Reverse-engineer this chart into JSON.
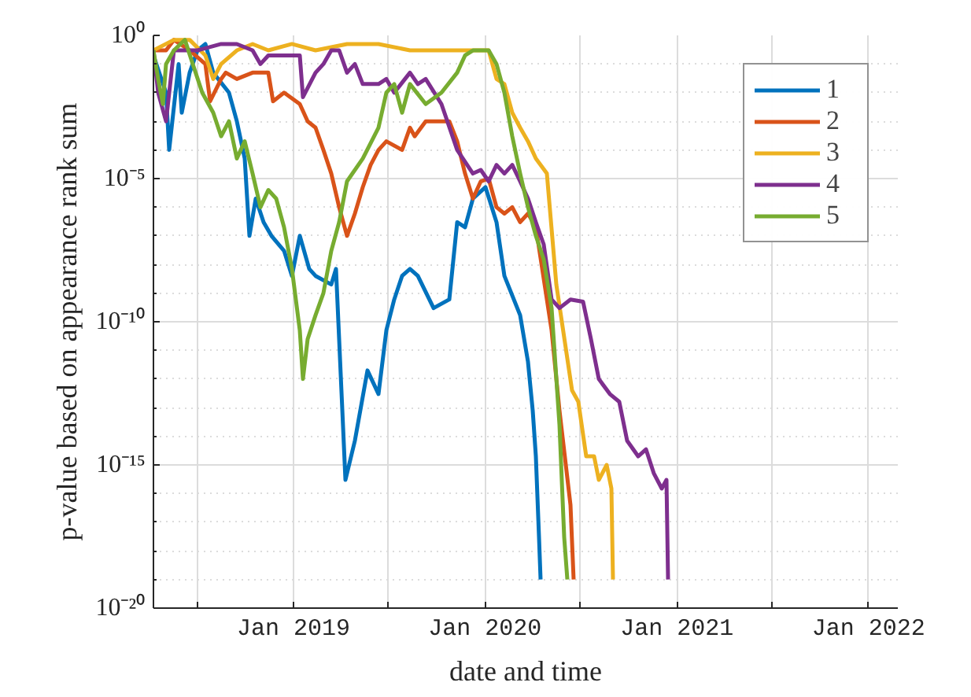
{
  "chart_data": {
    "type": "line",
    "xlabel": "date and time",
    "ylabel": "p-value based on appearance rank sum",
    "log": "y",
    "grid": true,
    "legend": "top right",
    "line_style": "solid",
    "marker": "none",
    "xlim": [
      "2018-04-09",
      "2022-02-26"
    ],
    "ylim": [
      1e-20,
      1
    ],
    "xticks": [
      {
        "value": "2018-07-01",
        "label": null
      },
      {
        "value": "2019-01-01",
        "label": "Jan 2019"
      },
      {
        "value": "2019-07-01",
        "label": null
      },
      {
        "value": "2020-01-01",
        "label": "Jan 2020"
      },
      {
        "value": "2020-07-01",
        "label": null
      },
      {
        "value": "2021-01-01",
        "label": "Jan 2021"
      },
      {
        "value": "2021-07-01",
        "label": null
      },
      {
        "value": "2022-01-01",
        "label": "Jan 2022"
      }
    ],
    "yticks": [
      {
        "value": 1e-20,
        "label": "10⁻²⁰"
      },
      {
        "value": 1e-19,
        "label": null
      },
      {
        "value": 1e-18,
        "label": null
      },
      {
        "value": 1e-17,
        "label": null
      },
      {
        "value": 1e-16,
        "label": null
      },
      {
        "value": 1e-15,
        "label": "10⁻¹⁵"
      },
      {
        "value": 1e-14,
        "label": null
      },
      {
        "value": 1e-13,
        "label": null
      },
      {
        "value": 1e-12,
        "label": null
      },
      {
        "value": 1e-11,
        "label": null
      },
      {
        "value": 1e-10,
        "label": "10⁻¹⁰"
      },
      {
        "value": 1e-09,
        "label": null
      },
      {
        "value": 1e-08,
        "label": null
      },
      {
        "value": 1e-07,
        "label": null
      },
      {
        "value": 1e-06,
        "label": null
      },
      {
        "value": 1e-05,
        "label": "10⁻⁵"
      },
      {
        "value": 0.0001,
        "label": null
      },
      {
        "value": 0.001,
        "label": null
      },
      {
        "value": 0.01,
        "label": null
      },
      {
        "value": 0.1,
        "label": null
      },
      {
        "value": 1,
        "label": "10⁰"
      }
    ],
    "series": [
      {
        "name": "1",
        "color": "#0072bd",
        "x": [
          "2018-04-09",
          "2018-05-03",
          "2018-05-09",
          "2018-05-27",
          "2018-06-02",
          "2018-06-17",
          "2018-07-02",
          "2018-07-17",
          "2018-08-01",
          "2018-08-31",
          "2018-09-15",
          "2018-09-30",
          "2018-10-09",
          "2018-10-21",
          "2018-11-05",
          "2018-11-20",
          "2018-12-14",
          "2018-12-29",
          "2019-01-13",
          "2019-01-31",
          "2019-02-12",
          "2019-03-14",
          "2019-03-23",
          "2019-04-10",
          "2019-04-28",
          "2019-05-22",
          "2019-06-12",
          "2019-06-27",
          "2019-07-12",
          "2019-07-27",
          "2019-08-11",
          "2019-08-26",
          "2019-09-25",
          "2019-10-25",
          "2019-11-09",
          "2019-11-24",
          "2019-12-09",
          "2020-01-02",
          "2020-01-23",
          "2020-02-07",
          "2020-03-08",
          "2020-03-23",
          "2020-04-01",
          "2020-04-07",
          "2020-04-13",
          "2020-04-16"
        ],
        "values": [
          0.2,
          0.01,
          0.0001,
          0.1,
          0.002,
          0.05,
          0.3,
          0.5,
          0.05,
          0.01,
          0.001,
          5e-05,
          1e-07,
          2e-06,
          3e-07,
          1e-07,
          3e-08,
          4e-09,
          1e-07,
          7e-09,
          4e-09,
          2e-09,
          7e-09,
          3e-16,
          7e-15,
          2e-12,
          3e-13,
          5e-11,
          6e-10,
          4e-09,
          7e-09,
          4e-09,
          3e-10,
          6e-10,
          3e-07,
          2e-07,
          2e-06,
          5e-06,
          3e-07,
          4e-09,
          1.7e-10,
          4e-12,
          8e-14,
          2e-15,
          3e-18,
          1e-19
        ]
      },
      {
        "name": "2",
        "color": "#d95319",
        "x": [
          "2018-04-09",
          "2018-05-03",
          "2018-05-18",
          "2018-06-17",
          "2018-07-17",
          "2018-07-26",
          "2018-08-16",
          "2018-08-25",
          "2018-09-15",
          "2018-10-15",
          "2018-11-14",
          "2018-11-23",
          "2018-12-14",
          "2019-01-13",
          "2019-01-28",
          "2019-02-12",
          "2019-02-27",
          "2019-03-14",
          "2019-03-29",
          "2019-04-13",
          "2019-04-28",
          "2019-05-13",
          "2019-05-28",
          "2019-06-12",
          "2019-06-27",
          "2019-07-27",
          "2019-08-11",
          "2019-08-20",
          "2019-09-10",
          "2019-10-10",
          "2019-10-25",
          "2019-11-09",
          "2019-11-24",
          "2019-12-09",
          "2019-12-24",
          "2020-01-08",
          "2020-01-23",
          "2020-02-07",
          "2020-02-22",
          "2020-03-08",
          "2020-03-23",
          "2020-04-07",
          "2020-05-07",
          "2020-05-22",
          "2020-06-12",
          "2020-06-18"
        ],
        "values": [
          0.3,
          0.3,
          0.7,
          0.3,
          0.1,
          0.005,
          0.03,
          0.05,
          0.03,
          0.05,
          0.05,
          0.005,
          0.01,
          0.004,
          0.001,
          0.0006,
          0.0001,
          1.5e-05,
          1e-06,
          1e-07,
          6e-07,
          5e-06,
          3e-05,
          0.0001,
          0.0002,
          0.0001,
          0.0006,
          0.0003,
          0.001,
          0.001,
          0.001,
          0.0002,
          1.5e-05,
          2e-06,
          8e-06,
          1e-05,
          1e-06,
          6e-07,
          1e-06,
          3e-07,
          6e-07,
          2e-07,
          5e-11,
          8e-14,
          4e-17,
          1e-19
        ]
      },
      {
        "name": "3",
        "color": "#edb120",
        "x": [
          "2018-04-09",
          "2018-05-18",
          "2018-06-17",
          "2018-07-17",
          "2018-08-01",
          "2018-08-16",
          "2018-09-15",
          "2018-10-15",
          "2018-11-14",
          "2018-12-29",
          "2019-02-12",
          "2019-04-13",
          "2019-06-12",
          "2019-08-11",
          "2019-10-10",
          "2019-12-09",
          "2020-01-08",
          "2020-01-23",
          "2020-02-07",
          "2020-02-22",
          "2020-03-08",
          "2020-03-23",
          "2020-04-07",
          "2020-04-28",
          "2020-05-16",
          "2020-06-15",
          "2020-06-27",
          "2020-07-12",
          "2020-07-27",
          "2020-08-05",
          "2020-08-20",
          "2020-08-29",
          "2020-09-01"
        ],
        "values": [
          0.3,
          0.7,
          0.7,
          0.2,
          0.03,
          0.1,
          0.3,
          0.5,
          0.3,
          0.5,
          0.3,
          0.5,
          0.5,
          0.3,
          0.3,
          0.3,
          0.3,
          0.03,
          0.02,
          0.002,
          0.0006,
          0.0002,
          5e-05,
          1.5e-05,
          2e-09,
          4e-13,
          1.6e-13,
          2e-15,
          2e-15,
          3e-16,
          1e-15,
          1.5e-16,
          1e-19
        ]
      },
      {
        "name": "4",
        "color": "#7e2f8e",
        "x": [
          "2018-04-09",
          "2018-04-18",
          "2018-05-03",
          "2018-05-18",
          "2018-07-02",
          "2018-08-16",
          "2018-09-15",
          "2018-10-15",
          "2018-10-30",
          "2018-11-14",
          "2019-01-13",
          "2019-01-19",
          "2019-02-12",
          "2019-02-27",
          "2019-03-14",
          "2019-03-29",
          "2019-04-13",
          "2019-04-28",
          "2019-05-13",
          "2019-06-12",
          "2019-06-27",
          "2019-07-12",
          "2019-08-11",
          "2019-08-26",
          "2019-09-10",
          "2019-10-10",
          "2019-11-09",
          "2019-12-09",
          "2019-12-24",
          "2020-01-08",
          "2020-01-23",
          "2020-02-07",
          "2020-02-22",
          "2020-03-08",
          "2020-03-23",
          "2020-04-07",
          "2020-04-22",
          "2020-05-07",
          "2020-05-22",
          "2020-06-12",
          "2020-07-06",
          "2020-07-21",
          "2020-08-05",
          "2020-08-26",
          "2020-09-13",
          "2020-09-28",
          "2020-10-19",
          "2020-11-03",
          "2020-11-18",
          "2020-12-03",
          "2020-12-12",
          "2020-12-15"
        ],
        "values": [
          0.3,
          0.01,
          0.001,
          0.3,
          0.3,
          0.5,
          0.5,
          0.3,
          0.1,
          0.2,
          0.2,
          0.007,
          0.05,
          0.1,
          0.3,
          0.3,
          0.05,
          0.1,
          0.02,
          0.02,
          0.03,
          0.01,
          0.05,
          0.02,
          0.03,
          0.004,
          0.0001,
          1.5e-05,
          2e-05,
          8e-06,
          3e-05,
          1.5e-05,
          3e-05,
          8e-06,
          2e-06,
          3e-07,
          5e-08,
          6e-10,
          3e-10,
          6e-10,
          5e-10,
          2.5e-11,
          1e-12,
          3e-13,
          1.6e-13,
          7e-15,
          2e-15,
          3.5e-15,
          5e-16,
          1.5e-16,
          3e-16,
          1e-19
        ]
      },
      {
        "name": "5",
        "color": "#77ac30",
        "x": [
          "2018-04-09",
          "2018-04-18",
          "2018-04-27",
          "2018-05-03",
          "2018-05-18",
          "2018-06-08",
          "2018-06-23",
          "2018-07-11",
          "2018-08-01",
          "2018-08-16",
          "2018-08-31",
          "2018-09-15",
          "2018-09-30",
          "2018-10-15",
          "2018-10-30",
          "2018-11-14",
          "2018-11-29",
          "2018-12-14",
          "2018-12-29",
          "2019-01-13",
          "2019-01-19",
          "2019-01-28",
          "2019-02-12",
          "2019-02-27",
          "2019-03-14",
          "2019-03-29",
          "2019-04-13",
          "2019-05-13",
          "2019-06-12",
          "2019-06-27",
          "2019-07-12",
          "2019-07-27",
          "2019-08-11",
          "2019-09-10",
          "2019-10-10",
          "2019-11-09",
          "2019-11-24",
          "2019-12-09",
          "2020-01-08",
          "2020-01-23",
          "2020-02-07",
          "2020-02-22",
          "2020-03-08",
          "2020-03-23",
          "2020-04-07",
          "2020-04-22",
          "2020-05-07",
          "2020-05-22",
          "2020-05-31",
          "2020-06-06"
        ],
        "values": [
          0.3,
          0.03,
          0.004,
          0.1,
          0.3,
          0.7,
          0.1,
          0.01,
          0.002,
          0.0003,
          0.001,
          5e-05,
          0.0002,
          1.5e-05,
          1e-06,
          4e-06,
          2e-06,
          2e-07,
          7e-09,
          5e-11,
          1e-12,
          2.5e-11,
          1.7e-10,
          1e-09,
          3e-08,
          3e-07,
          8e-06,
          5e-05,
          0.0006,
          0.01,
          0.02,
          0.002,
          0.02,
          0.004,
          0.01,
          0.05,
          0.2,
          0.3,
          0.3,
          0.1,
          0.01,
          0.0003,
          1.5e-05,
          1e-06,
          1e-07,
          1.5e-08,
          3e-10,
          2.5e-14,
          3e-18,
          1e-19
        ]
      }
    ]
  }
}
